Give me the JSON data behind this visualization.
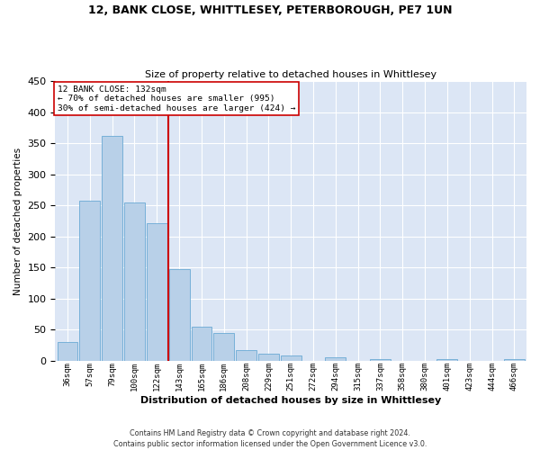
{
  "title1": "12, BANK CLOSE, WHITTLESEY, PETERBOROUGH, PE7 1UN",
  "title2": "Size of property relative to detached houses in Whittlesey",
  "xlabel": "Distribution of detached houses by size in Whittlesey",
  "ylabel": "Number of detached properties",
  "categories": [
    "36sqm",
    "57sqm",
    "79sqm",
    "100sqm",
    "122sqm",
    "143sqm",
    "165sqm",
    "186sqm",
    "208sqm",
    "229sqm",
    "251sqm",
    "272sqm",
    "294sqm",
    "315sqm",
    "337sqm",
    "358sqm",
    "380sqm",
    "401sqm",
    "423sqm",
    "444sqm",
    "466sqm"
  ],
  "values": [
    30,
    258,
    362,
    255,
    222,
    147,
    55,
    44,
    17,
    12,
    9,
    0,
    6,
    0,
    3,
    0,
    0,
    3,
    0,
    0,
    3
  ],
  "bar_color": "#b8d0e8",
  "bar_edge_color": "#6aaad4",
  "vline_color": "#cc0000",
  "annotation_line1": "12 BANK CLOSE: 132sqm",
  "annotation_line2": "← 70% of detached houses are smaller (995)",
  "annotation_line3": "30% of semi-detached houses are larger (424) →",
  "footer": "Contains HM Land Registry data © Crown copyright and database right 2024.\nContains public sector information licensed under the Open Government Licence v3.0.",
  "ylim": [
    0,
    450
  ],
  "yticks": [
    0,
    50,
    100,
    150,
    200,
    250,
    300,
    350,
    400,
    450
  ],
  "plot_background": "#dce6f5",
  "vline_pos": 4.5
}
